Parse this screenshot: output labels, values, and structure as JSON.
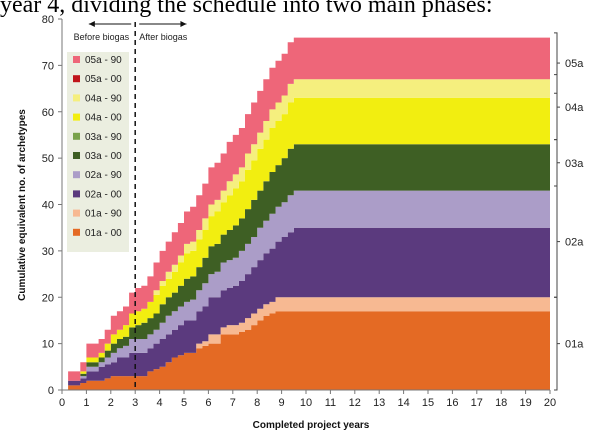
{
  "caption": "year 4, dividing the schedule into two main phases:",
  "chart_data": {
    "type": "area",
    "xlabel": "Completed project years",
    "ylabel": "Cumulative equivalent  no. of archetypes",
    "xlim": [
      0,
      20
    ],
    "ylim": [
      0,
      80
    ],
    "x_ticks": [
      "0",
      "1",
      "2",
      "3",
      "4",
      "5",
      "6",
      "7",
      "8",
      "9",
      "10",
      "11",
      "12",
      "13",
      "14",
      "15",
      "16",
      "17",
      "18",
      "19",
      "20"
    ],
    "y_ticks": [
      "0",
      "10",
      "20",
      "30",
      "40",
      "50",
      "60",
      "70",
      "80"
    ],
    "stacked": true,
    "steps_per_year": 4,
    "phase_line": {
      "x": 3,
      "left_label": "Before biogas",
      "right_label": "After biogas"
    },
    "series": [
      {
        "name": "01a - 00",
        "color": "#E46A24",
        "values": [
          0,
          1,
          1,
          1.5,
          2,
          2,
          2,
          2.5,
          3,
          3,
          3,
          3,
          3,
          3,
          4,
          4.5,
          5,
          6,
          7,
          7.5,
          8,
          8,
          9,
          9.5,
          10,
          10,
          12,
          12,
          12,
          12.5,
          13,
          14,
          15,
          16,
          16.5,
          17,
          17,
          17,
          17,
          17,
          17,
          17,
          17,
          17,
          17,
          17,
          17,
          17,
          17,
          17,
          17,
          17,
          17,
          17,
          17,
          17,
          17,
          17,
          17,
          17,
          17,
          17,
          17,
          17,
          17,
          17,
          17,
          17,
          17,
          17,
          17,
          17,
          17,
          17,
          17,
          17,
          17,
          17,
          17,
          17,
          17
        ]
      },
      {
        "name": "01a - 90",
        "color": "#F7B992",
        "values": [
          0,
          0,
          0,
          0,
          0,
          0,
          0,
          0,
          0,
          0,
          0,
          0,
          0,
          0,
          0,
          0,
          0,
          0,
          0,
          0,
          0,
          0,
          1,
          1,
          2,
          2,
          1.5,
          2,
          2,
          2,
          2.5,
          2.5,
          2.5,
          2.5,
          2.5,
          3,
          3,
          3,
          3,
          3,
          3,
          3,
          3,
          3,
          3,
          3,
          3,
          3,
          3,
          3,
          3,
          3,
          3,
          3,
          3,
          3,
          3,
          3,
          3,
          3,
          3,
          3,
          3,
          3,
          3,
          3,
          3,
          3,
          3,
          3,
          3,
          3,
          3,
          3,
          3,
          3,
          3,
          3,
          3,
          3,
          3
        ]
      },
      {
        "name": "02a - 00",
        "color": "#5B3A7E",
        "values": [
          0,
          1,
          1,
          1,
          2,
          2,
          3,
          3,
          3,
          4,
          4,
          5,
          5,
          5,
          5,
          5.5,
          6,
          6,
          6,
          6.5,
          7,
          7,
          7,
          7.5,
          8,
          8,
          8,
          8,
          8.5,
          9,
          9.5,
          10,
          10.5,
          11,
          11.5,
          12,
          13,
          14,
          15,
          15,
          15,
          15,
          15,
          15,
          15,
          15,
          15,
          15,
          15,
          15,
          15,
          15,
          15,
          15,
          15,
          15,
          15,
          15,
          15,
          15,
          15,
          15,
          15,
          15,
          15,
          15,
          15,
          15,
          15,
          15,
          15,
          15,
          15,
          15,
          15,
          15,
          15,
          15,
          15,
          15,
          15
        ]
      },
      {
        "name": "02a - 90",
        "color": "#AB9DC8",
        "values": [
          0,
          0,
          0,
          0.5,
          1,
          1,
          1,
          1.5,
          2,
          2,
          2.5,
          3,
          3,
          3,
          3,
          3,
          3.5,
          4,
          4,
          4,
          4,
          4.5,
          4.5,
          5,
          5,
          5.5,
          6,
          6,
          6,
          6.5,
          6.5,
          6.5,
          7,
          7,
          7.5,
          7.5,
          7.5,
          8,
          8,
          8,
          8,
          8,
          8,
          8,
          8,
          8,
          8,
          8,
          8,
          8,
          8,
          8,
          8,
          8,
          8,
          8,
          8,
          8,
          8,
          8,
          8,
          8,
          8,
          8,
          8,
          8,
          8,
          8,
          8,
          8,
          8,
          8,
          8,
          8,
          8,
          8,
          8,
          8,
          8,
          8,
          8
        ]
      },
      {
        "name": "03a - 00",
        "color": "#3E5F24",
        "values": [
          0,
          0,
          0,
          0.5,
          1,
          1,
          1,
          1.5,
          2,
          2,
          2,
          2.5,
          3,
          3.5,
          3.5,
          3.5,
          4,
          4,
          4,
          4.5,
          5,
          5,
          5,
          5.5,
          6,
          6,
          6,
          6.5,
          7,
          7,
          7.5,
          8,
          8,
          8.5,
          9,
          9,
          9.5,
          10,
          10,
          10,
          10,
          10,
          10,
          10,
          10,
          10,
          10,
          10,
          10,
          10,
          10,
          10,
          10,
          10,
          10,
          10,
          10,
          10,
          10,
          10,
          10,
          10,
          10,
          10,
          10,
          10,
          10,
          10,
          10,
          10,
          10,
          10,
          10,
          10,
          10,
          10,
          10,
          10,
          10,
          10,
          10
        ]
      },
      {
        "name": "03a - 90",
        "color": "#79A24A",
        "values": [
          0,
          0,
          0,
          0,
          0,
          0,
          0,
          0,
          0,
          0,
          0,
          0,
          0,
          0,
          0,
          0,
          0,
          0,
          0,
          0,
          0,
          0,
          0,
          0,
          0,
          0,
          0,
          0,
          0,
          0,
          0,
          0,
          0,
          0,
          0,
          0,
          0,
          0,
          0,
          0,
          0,
          0,
          0,
          0,
          0,
          0,
          0,
          0,
          0,
          0,
          0,
          0,
          0,
          0,
          0,
          0,
          0,
          0,
          0,
          0,
          0,
          0,
          0,
          0,
          0,
          0,
          0,
          0,
          0,
          0,
          0,
          0,
          0,
          0,
          0,
          0,
          0,
          0,
          0,
          0,
          0
        ]
      },
      {
        "name": "04a - 00",
        "color": "#F2EE10",
        "values": [
          0,
          0,
          0,
          0.5,
          1,
          1,
          1,
          1.5,
          2,
          2,
          2.5,
          3,
          3,
          3,
          3.5,
          4,
          4,
          4,
          4.5,
          5,
          5.5,
          5.5,
          6,
          6,
          6.5,
          7,
          7,
          7.5,
          8,
          8,
          8.5,
          8.5,
          9,
          9,
          9.5,
          9.5,
          9.5,
          10,
          10,
          10,
          10,
          10,
          10,
          10,
          10,
          10,
          10,
          10,
          10,
          10,
          10,
          10,
          10,
          10,
          10,
          10,
          10,
          10,
          10,
          10,
          10,
          10,
          10,
          10,
          10,
          10,
          10,
          10,
          10,
          10,
          10,
          10,
          10,
          10,
          10,
          10,
          10,
          10,
          10,
          10,
          10
        ]
      },
      {
        "name": "04a - 90",
        "color": "#F5EF7E",
        "values": [
          0,
          0,
          0,
          0,
          0,
          0,
          0,
          0,
          0,
          0,
          0,
          0,
          0,
          0,
          0,
          1,
          1,
          1.5,
          1.5,
          1.5,
          2,
          2,
          2,
          2.5,
          2.5,
          2.5,
          2.5,
          3,
          3,
          3,
          3.5,
          3.5,
          3.5,
          4,
          4,
          4,
          4,
          4,
          4,
          4,
          4,
          4,
          4,
          4,
          4,
          4,
          4,
          4,
          4,
          4,
          4,
          4,
          4,
          4,
          4,
          4,
          4,
          4,
          4,
          4,
          4,
          4,
          4,
          4,
          4,
          4,
          4,
          4,
          4,
          4,
          4,
          4,
          4,
          4,
          4,
          4,
          4,
          4,
          4,
          4,
          4
        ]
      },
      {
        "name": "05a - 00",
        "color": "#C0151B",
        "values": [
          0,
          0,
          0,
          0,
          0,
          0,
          0,
          0,
          0,
          0,
          0,
          0,
          0,
          0,
          0,
          0,
          0,
          0,
          0,
          0,
          0,
          0,
          0,
          0,
          0,
          0,
          0,
          0,
          0,
          0,
          0,
          0,
          0,
          0,
          0,
          0,
          0,
          0,
          0,
          0,
          0,
          0,
          0,
          0,
          0,
          0,
          0,
          0,
          0,
          0,
          0,
          0,
          0,
          0,
          0,
          0,
          0,
          0,
          0,
          0,
          0,
          0,
          0,
          0,
          0,
          0,
          0,
          0,
          0,
          0,
          0,
          0,
          0,
          0,
          0,
          0,
          0,
          0,
          0,
          0,
          0
        ]
      },
      {
        "name": "05a - 90",
        "color": "#EE6679",
        "values": [
          0,
          2,
          2,
          2,
          3,
          3,
          3,
          3,
          4,
          4,
          4,
          4.5,
          5,
          5,
          5.5,
          6,
          6.5,
          6.5,
          7,
          7,
          7,
          7.5,
          7.5,
          7.5,
          8,
          8,
          8,
          8.5,
          8.5,
          8.5,
          8.5,
          9,
          9,
          9,
          9,
          9,
          9,
          9,
          9,
          9,
          9,
          9,
          9,
          9,
          9,
          9,
          9,
          9,
          9,
          9,
          9,
          9,
          9,
          9,
          9,
          9,
          9,
          9,
          9,
          9,
          9,
          9,
          9,
          9,
          9,
          9,
          9,
          9,
          9,
          9,
          9,
          9,
          9,
          9,
          9,
          9,
          9,
          9,
          9,
          9,
          9
        ]
      }
    ],
    "legend": {
      "position": "top-left",
      "entries": [
        "05a - 90",
        "05a - 00",
        "04a - 90",
        "04a - 00",
        "03a - 90",
        "03a - 00",
        "02a - 90",
        "02a - 00",
        "01a - 90",
        "01a - 00"
      ]
    },
    "groups": [
      {
        "label": "05a",
        "range": [
          64,
          77
        ]
      },
      {
        "label": "04a",
        "range": [
          54,
          68
        ]
      },
      {
        "label": "03a",
        "range": [
          44,
          54
        ]
      },
      {
        "label": "02a",
        "range": [
          20,
          44
        ]
      },
      {
        "label": "01a",
        "range": [
          0,
          20
        ]
      }
    ],
    "grid": false
  }
}
